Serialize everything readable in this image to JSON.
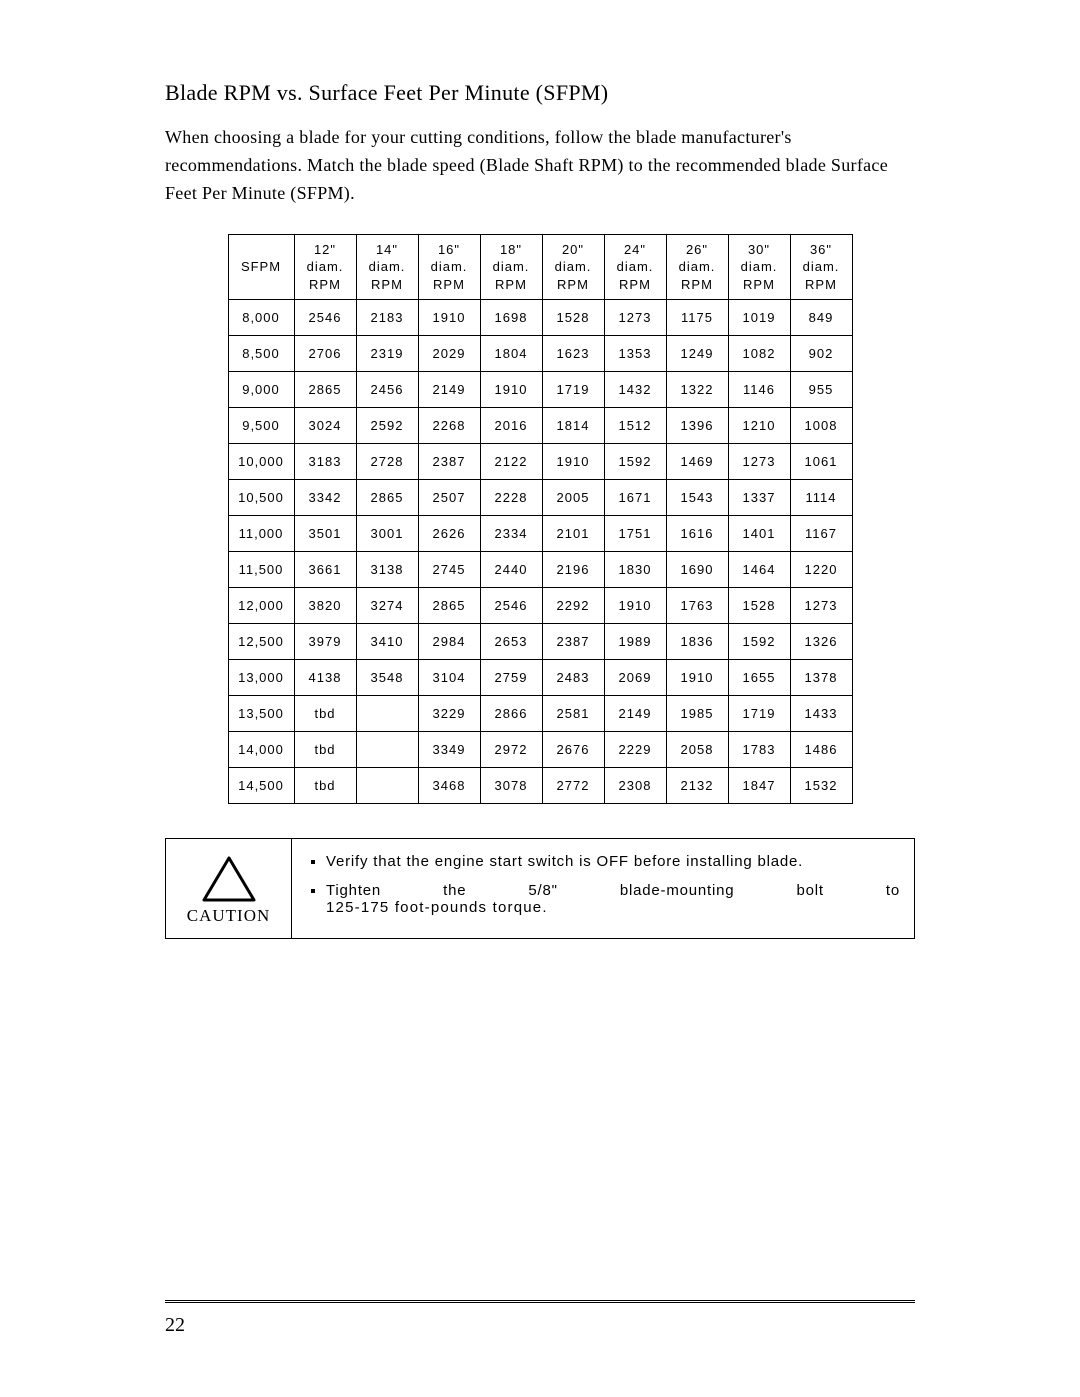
{
  "heading": "Blade RPM vs. Surface Feet Per Minute (SFPM)",
  "intro": "When choosing a blade for your cutting conditions, follow the blade manufacturer's recommendations. Match the blade speed (Blade Shaft RPM) to the recommended blade Surface Feet Per Minute (SFPM).",
  "table": {
    "col_sfpm_label": "SFPM",
    "diam_sizes": [
      "12\"",
      "14\"",
      "16\"",
      "18\"",
      "20\"",
      "24\"",
      "26\"",
      "30\"",
      "36\""
    ],
    "header_line2": "diam.",
    "header_line3": "RPM",
    "rows": [
      {
        "sfpm": "8,000",
        "vals": [
          "2546",
          "2183",
          "1910",
          "1698",
          "1528",
          "1273",
          "1175",
          "1019",
          "849"
        ]
      },
      {
        "sfpm": "8,500",
        "vals": [
          "2706",
          "2319",
          "2029",
          "1804",
          "1623",
          "1353",
          "1249",
          "1082",
          "902"
        ]
      },
      {
        "sfpm": "9,000",
        "vals": [
          "2865",
          "2456",
          "2149",
          "1910",
          "1719",
          "1432",
          "1322",
          "1146",
          "955"
        ]
      },
      {
        "sfpm": "9,500",
        "vals": [
          "3024",
          "2592",
          "2268",
          "2016",
          "1814",
          "1512",
          "1396",
          "1210",
          "1008"
        ]
      },
      {
        "sfpm": "10,000",
        "vals": [
          "3183",
          "2728",
          "2387",
          "2122",
          "1910",
          "1592",
          "1469",
          "1273",
          "1061"
        ]
      },
      {
        "sfpm": "10,500",
        "vals": [
          "3342",
          "2865",
          "2507",
          "2228",
          "2005",
          "1671",
          "1543",
          "1337",
          "1114"
        ]
      },
      {
        "sfpm": "11,000",
        "vals": [
          "3501",
          "3001",
          "2626",
          "2334",
          "2101",
          "1751",
          "1616",
          "1401",
          "1167"
        ]
      },
      {
        "sfpm": "11,500",
        "vals": [
          "3661",
          "3138",
          "2745",
          "2440",
          "2196",
          "1830",
          "1690",
          "1464",
          "1220"
        ]
      },
      {
        "sfpm": "12,000",
        "vals": [
          "3820",
          "3274",
          "2865",
          "2546",
          "2292",
          "1910",
          "1763",
          "1528",
          "1273"
        ]
      },
      {
        "sfpm": "12,500",
        "vals": [
          "3979",
          "3410",
          "2984",
          "2653",
          "2387",
          "1989",
          "1836",
          "1592",
          "1326"
        ]
      },
      {
        "sfpm": "13,000",
        "vals": [
          "4138",
          "3548",
          "3104",
          "2759",
          "2483",
          "2069",
          "1910",
          "1655",
          "1378"
        ]
      },
      {
        "sfpm": "13,500",
        "vals": [
          "tbd",
          "",
          "3229",
          "2866",
          "2581",
          "2149",
          "1985",
          "1719",
          "1433"
        ]
      },
      {
        "sfpm": "14,000",
        "vals": [
          "tbd",
          "",
          "3349",
          "2972",
          "2676",
          "2229",
          "2058",
          "1783",
          "1486"
        ]
      },
      {
        "sfpm": "14,500",
        "vals": [
          "tbd",
          "",
          "3468",
          "3078",
          "2772",
          "2308",
          "2132",
          "1847",
          "1532"
        ]
      }
    ]
  },
  "caution": {
    "label": "CAUTION",
    "items": [
      "Verify that the engine start switch is OFF before installing blade.",
      {
        "line1_words": [
          "Tighten",
          "the",
          "5/8\"",
          "blade-mounting",
          "bolt",
          "to"
        ],
        "line2": "125-175 foot-pounds torque."
      }
    ]
  },
  "page_number": "22",
  "colors": {
    "text": "#000000",
    "bg": "#ffffff",
    "border": "#000000"
  }
}
